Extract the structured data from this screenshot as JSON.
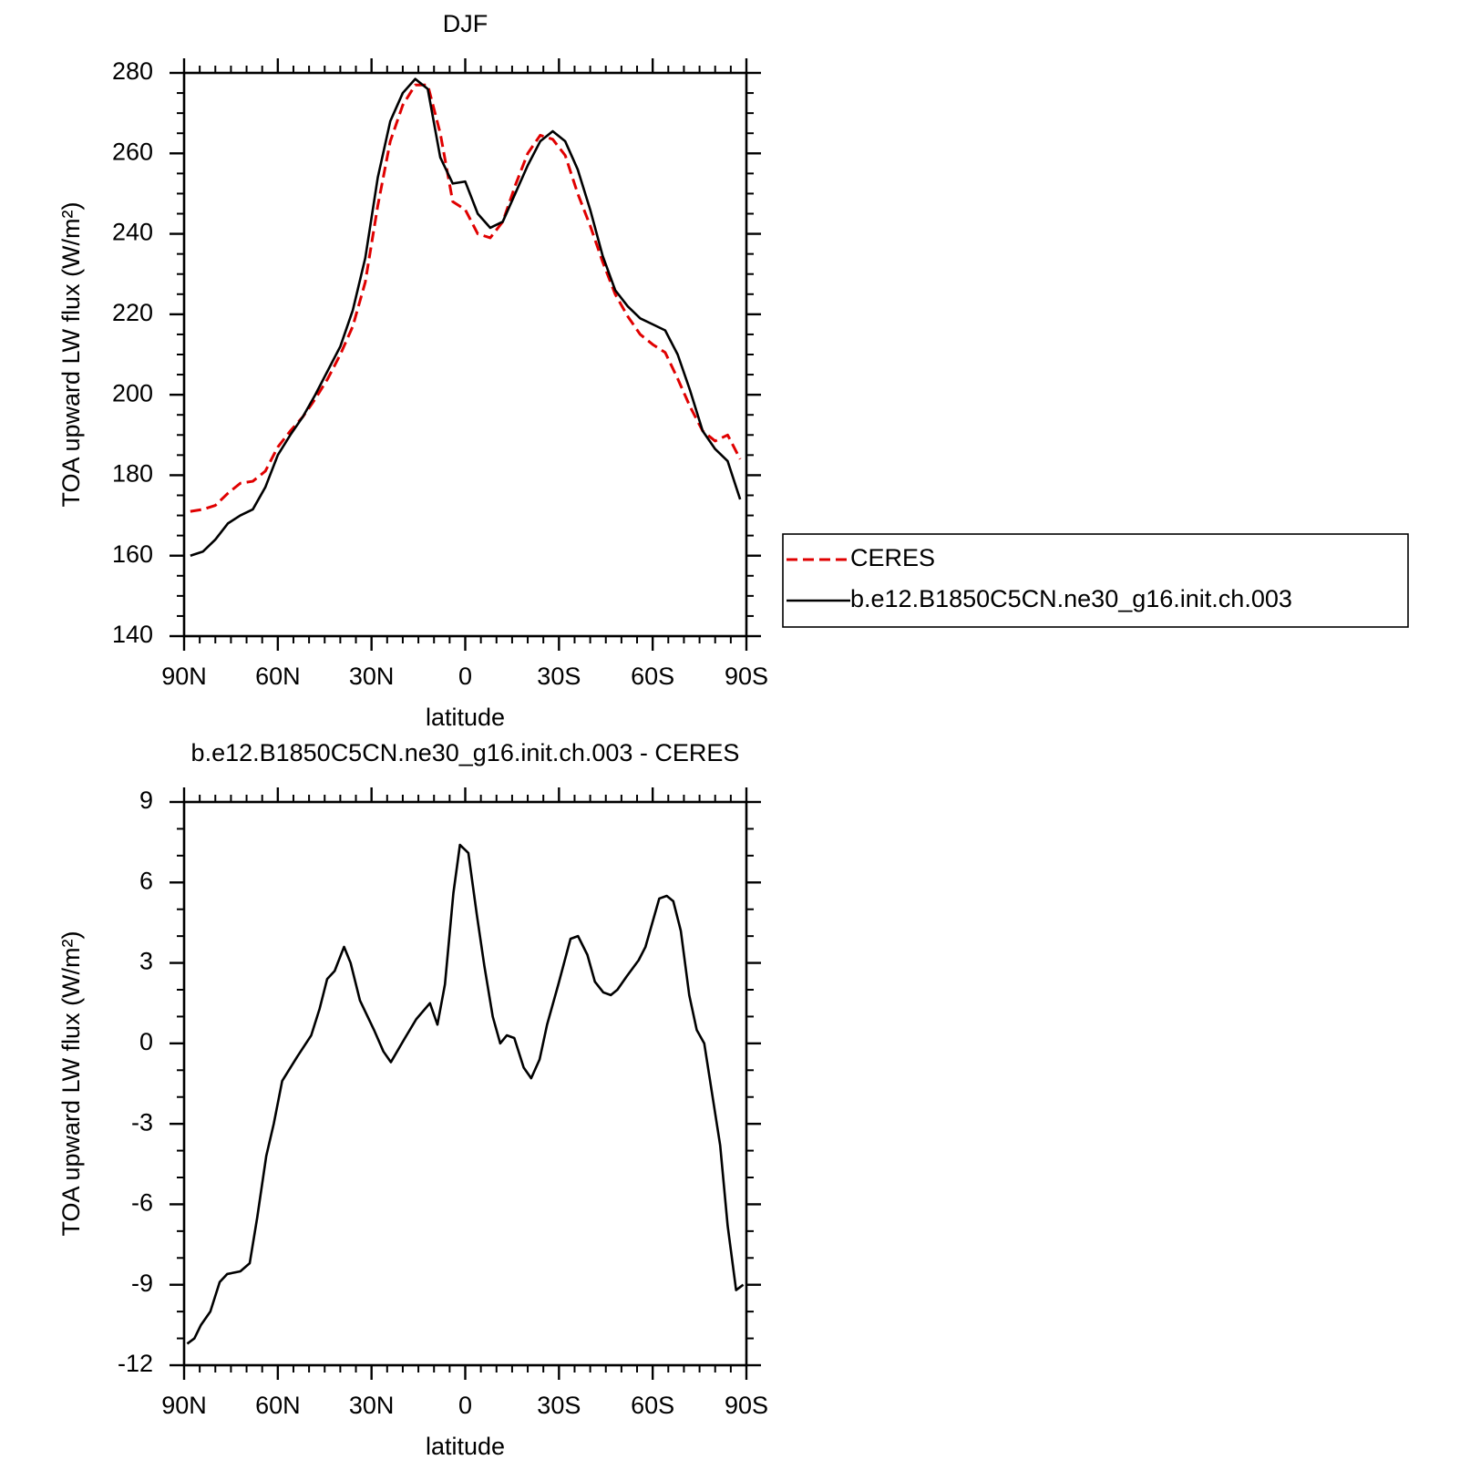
{
  "chart_data": [
    {
      "type": "line",
      "title": "DJF",
      "xlabel": "latitude",
      "ylabel": "TOA upward LW flux (W/m²)",
      "x": [
        88,
        84,
        80,
        76,
        72,
        68,
        64,
        60,
        56,
        52,
        48,
        44,
        40,
        36,
        32,
        28,
        24,
        20,
        16,
        12,
        8,
        4,
        0,
        -4,
        -8,
        -12,
        -16,
        -20,
        -24,
        -28,
        -32,
        -36,
        -40,
        -44,
        -48,
        -52,
        -56,
        -60,
        -64,
        -68,
        -72,
        -76,
        -80,
        -84,
        -88
      ],
      "series": [
        {
          "name": "CERES",
          "color": "#e00000",
          "dash": true,
          "values": [
            171,
            171.5,
            172.5,
            175.5,
            178,
            178.5,
            181,
            187,
            191,
            194.5,
            199,
            204,
            210,
            217,
            228,
            247,
            263,
            272,
            277,
            277,
            265,
            248,
            246,
            240,
            239,
            243,
            252,
            260,
            264.5,
            263.5,
            259.5,
            250,
            242,
            233,
            225,
            219.5,
            215,
            212.5,
            210.5,
            204,
            197,
            191,
            188.5,
            190,
            184
          ]
        },
        {
          "name": "b.e12.B1850C5CN.ne30_g16.init.ch.003",
          "color": "#000000",
          "dash": false,
          "values": [
            160,
            161,
            164,
            168,
            170,
            171.5,
            177,
            185,
            190,
            194.5,
            200,
            206,
            212,
            221,
            234,
            254,
            268,
            275,
            278.5,
            276,
            259,
            252.5,
            253,
            245,
            241.5,
            243,
            250,
            257,
            263,
            265.5,
            263,
            256,
            246,
            234.5,
            226,
            222,
            219,
            217.5,
            216,
            210,
            201,
            191,
            186.5,
            183.5,
            174
          ]
        }
      ],
      "xlim": [
        90,
        -90
      ],
      "xticks": [
        {
          "value": 90,
          "label": "90N"
        },
        {
          "value": 60,
          "label": "60N"
        },
        {
          "value": 30,
          "label": "30N"
        },
        0,
        {
          "value": -30,
          "label": "30S"
        },
        {
          "value": -60,
          "label": "60S"
        },
        {
          "value": -90,
          "label": "90S"
        }
      ],
      "ylim": [
        140,
        280
      ],
      "yticks": [
        140,
        160,
        180,
        200,
        220,
        240,
        260,
        280
      ],
      "legend": "right"
    },
    {
      "type": "line",
      "title": "b.e12.B1850C5CN.ne30_g16.init.ch.003 - CERES",
      "xlabel": "latitude",
      "ylabel": "TOA upward LW flux (W/m²)",
      "x": [
        89,
        86.7,
        84.6,
        81.6,
        78.6,
        76.2,
        72,
        69,
        66.6,
        63.7,
        61.3,
        58.6,
        53.8,
        49.3,
        46.6,
        44.2,
        41.8,
        38.8,
        36.7,
        33.7,
        29.2,
        26.2,
        23.8,
        19.3,
        15.7,
        11.3,
        8.9,
        6.5,
        3.8,
        1.7,
        -1,
        -3.7,
        -6.1,
        -8.8,
        -11.2,
        -13.3,
        -15.7,
        -18.7,
        -21.1,
        -23.8,
        -26.2,
        -29.8,
        -33.7,
        -36.1,
        -39.1,
        -41.5,
        -44.2,
        -46.6,
        -48.7,
        -51.7,
        -55.5,
        -57.7,
        -62.1,
        -64.5,
        -66.6,
        -69,
        -71.7,
        -74.1,
        -76.5,
        -81.6,
        -84,
        -86.7,
        -89
      ],
      "values": [
        -11.2,
        -11,
        -10.5,
        -10,
        -8.9,
        -8.6,
        -8.5,
        -8.2,
        -6.5,
        -4.2,
        -3,
        -1.4,
        -0.5,
        0.3,
        1.3,
        2.4,
        2.7,
        3.6,
        3,
        1.6,
        0.5,
        -0.3,
        -0.7,
        0.2,
        0.9,
        1.5,
        0.7,
        2.2,
        5.6,
        7.4,
        7.1,
        4.8,
        2.9,
        1,
        0,
        0.3,
        0.2,
        -0.9,
        -1.3,
        -0.6,
        0.7,
        2.2,
        3.9,
        4,
        3.3,
        2.3,
        1.9,
        1.8,
        2,
        2.5,
        3.1,
        3.6,
        5.4,
        5.5,
        5.3,
        4.2,
        1.8,
        0.5,
        0,
        -3.8,
        -6.8,
        -9.2,
        -9
      ],
      "color": "#000000",
      "xlim": [
        90,
        -90
      ],
      "xticks": [
        {
          "value": 90,
          "label": "90N"
        },
        {
          "value": 60,
          "label": "60N"
        },
        {
          "value": 30,
          "label": "30N"
        },
        0,
        {
          "value": -30,
          "label": "30S"
        },
        {
          "value": -60,
          "label": "60S"
        },
        {
          "value": -90,
          "label": "90S"
        }
      ],
      "ylim": [
        -12,
        9
      ],
      "yticks": [
        -12,
        -9,
        -6,
        -3,
        0,
        3,
        6,
        9
      ]
    }
  ]
}
